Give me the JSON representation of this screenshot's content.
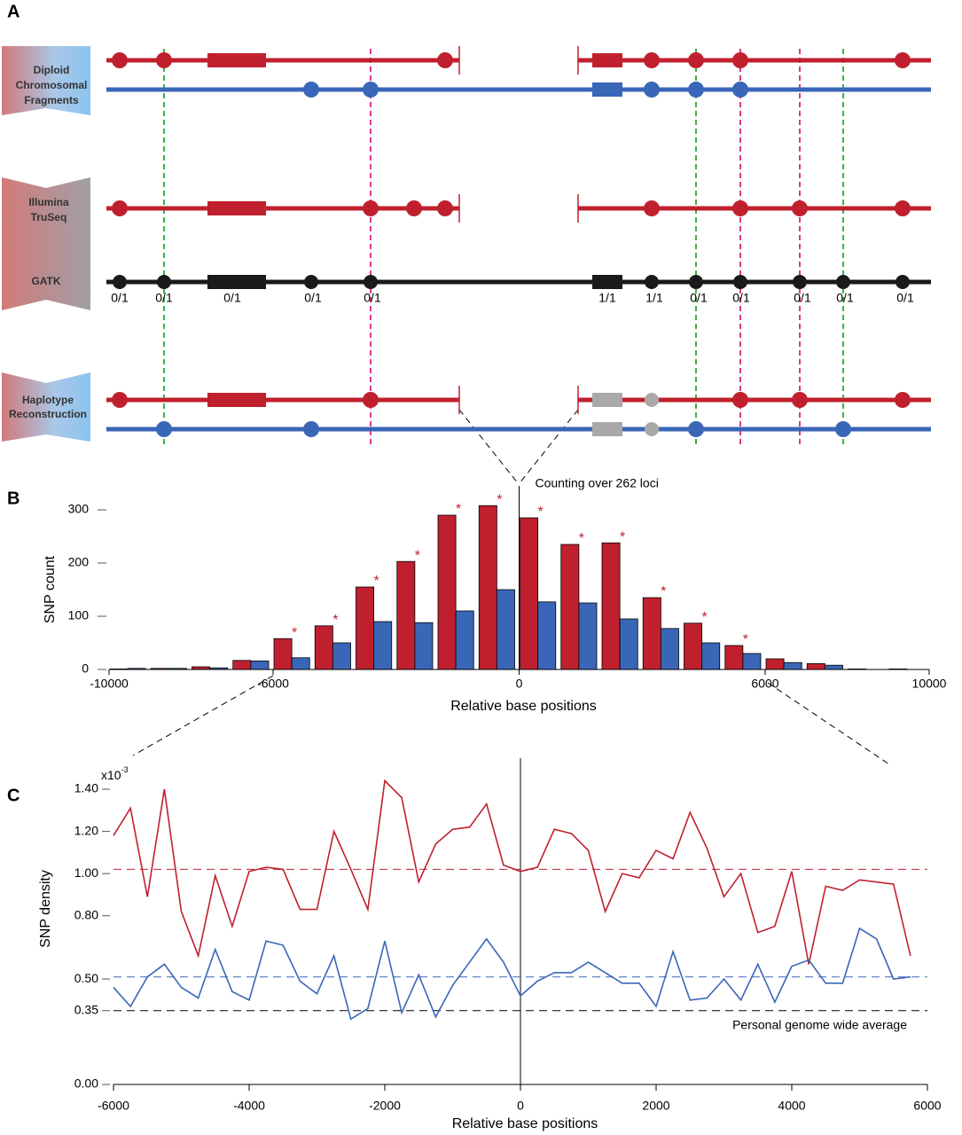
{
  "panel_a": {
    "label": "A",
    "steps": [
      {
        "lines": [
          "Diploid",
          "Chromosomal",
          "Fragments"
        ]
      },
      {
        "lines": [
          "Illumina",
          "TruSeq"
        ]
      },
      {
        "lines": [
          "GATK"
        ]
      },
      {
        "lines": [
          "Haplotype",
          "Reconstruction"
        ]
      }
    ],
    "genotypes": [
      "0/1",
      "0/1",
      "0/1",
      "0/1",
      "0/1",
      "1/1",
      "1/1",
      "0/1",
      "0/1",
      "0/1",
      "0/1",
      "0/1"
    ]
  },
  "chart_data": [
    {
      "type": "histogram",
      "panel_label": "B",
      "y_label": "SNP count",
      "x_label": "Relative base positions",
      "annotation": "Counting over 262 loci",
      "bins": [
        -10000,
        -9000,
        -8000,
        -7000,
        -6000,
        -5000,
        -4000,
        -3000,
        -2000,
        -1000,
        0,
        1000,
        2000,
        3000,
        4000,
        5000,
        6000,
        7000,
        8000,
        9000,
        10000
      ],
      "series": [
        {
          "color": "#c0202e",
          "values": [
            1,
            2,
            5,
            17,
            58,
            82,
            155,
            203,
            290,
            308,
            285,
            235,
            238,
            135,
            87,
            45,
            20,
            11,
            1,
            1
          ],
          "significance": [
            null,
            null,
            null,
            null,
            "*",
            "*",
            "*",
            "*",
            "*",
            "*",
            "*",
            "*",
            "*",
            "*",
            "*",
            "*",
            null,
            null,
            null,
            null
          ]
        },
        {
          "color": "#3a66b8",
          "values": [
            2,
            2,
            3,
            16,
            22,
            50,
            90,
            88,
            110,
            150,
            127,
            125,
            95,
            77,
            50,
            30,
            13,
            8,
            0,
            0
          ]
        }
      ],
      "xlim": [
        -10000,
        10000
      ],
      "xticks": [
        -10000,
        -6000,
        0,
        6000,
        10000
      ],
      "ylim": [
        0,
        330
      ],
      "yticks": [
        0,
        100,
        200,
        300
      ]
    },
    {
      "type": "line",
      "panel_label": "C",
      "y_label": "SNP density",
      "x_label": "Relative base positions",
      "y_unit": "x10",
      "y_unit_exp": "-3",
      "x": [
        -6000,
        -5750,
        -5500,
        -5250,
        -5000,
        -4750,
        -4500,
        -4250,
        -4000,
        -3750,
        -3500,
        -3250,
        -3000,
        -2750,
        -2500,
        -2250,
        -2000,
        -1750,
        -1500,
        -1250,
        -1000,
        -750,
        -500,
        -250,
        0,
        250,
        500,
        750,
        1000,
        1250,
        1500,
        1750,
        2000,
        2250,
        2500,
        2750,
        3000,
        3250,
        3500,
        3750,
        4000,
        4250,
        4500,
        4750,
        5000,
        5250,
        5500,
        5750
      ],
      "series": [
        {
          "color": "#c0202e",
          "values": [
            1.18,
            1.31,
            0.89,
            1.4,
            0.82,
            0.61,
            0.99,
            0.75,
            1.01,
            1.03,
            1.02,
            0.83,
            0.83,
            1.2,
            1.02,
            0.83,
            1.44,
            1.36,
            0.96,
            1.14,
            1.21,
            1.22,
            1.33,
            1.04,
            1.01,
            1.03,
            1.21,
            1.19,
            1.11,
            0.82,
            1.0,
            0.98,
            1.11,
            1.07,
            1.29,
            1.12,
            0.89,
            1.0,
            0.72,
            0.75,
            1.01,
            0.57,
            0.94,
            0.92,
            0.97,
            0.96,
            0.95,
            0.61
          ]
        },
        {
          "color": "#3a66b8",
          "values": [
            0.46,
            0.37,
            0.51,
            0.57,
            0.46,
            0.41,
            0.64,
            0.44,
            0.4,
            0.68,
            0.66,
            0.49,
            0.43,
            0.61,
            0.31,
            0.36,
            0.68,
            0.34,
            0.52,
            0.32,
            0.47,
            0.58,
            0.69,
            0.58,
            0.42,
            0.49,
            0.53,
            0.53,
            0.58,
            0.53,
            0.48,
            0.48,
            0.37,
            0.63,
            0.4,
            0.41,
            0.5,
            0.4,
            0.57,
            0.39,
            0.56,
            0.59,
            0.48,
            0.48,
            0.74,
            0.69,
            0.5,
            0.51
          ]
        }
      ],
      "reference_lines": [
        {
          "value": 1.02,
          "color": "#c0202e"
        },
        {
          "value": 0.51,
          "color": "#3a66b8"
        },
        {
          "value": 0.35,
          "color": "#000000",
          "label": "Personal genome wide average"
        }
      ],
      "xlim": [
        -6000,
        6000
      ],
      "xticks": [
        -6000,
        -4000,
        -2000,
        0,
        2000,
        4000,
        6000
      ],
      "ylim": [
        0,
        1.48
      ],
      "yticks": [
        {
          "value": 0,
          "label": "0.00"
        },
        {
          "value": 0.35,
          "label": "0.35"
        },
        {
          "value": 0.5,
          "label": "0.50"
        },
        {
          "value": 0.8,
          "label": "0.80"
        },
        {
          "value": 1.0,
          "label": "1.00"
        },
        {
          "value": 1.2,
          "label": "1.20"
        },
        {
          "value": 1.4,
          "label": "1.40"
        }
      ]
    }
  ]
}
